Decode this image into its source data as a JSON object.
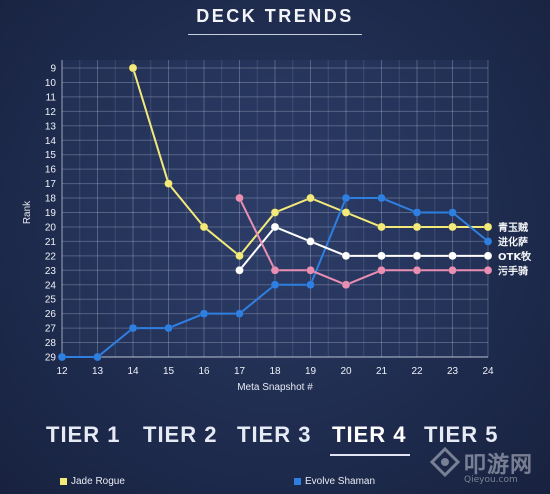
{
  "header": {
    "title": "DECK TRENDS"
  },
  "chart_data": {
    "type": "line",
    "title": "DECK TRENDS",
    "xlabel": "Meta Snapshot #",
    "ylabel": "Rank",
    "x_ticks": [
      12,
      13,
      14,
      15,
      16,
      17,
      18,
      19,
      20,
      21,
      22,
      23,
      24
    ],
    "y_ticks": [
      9,
      10,
      11,
      12,
      13,
      14,
      15,
      16,
      17,
      18,
      19,
      20,
      21,
      22,
      23,
      24,
      25,
      26,
      27,
      28,
      29
    ],
    "xlim": [
      12,
      24
    ],
    "ylim": [
      29,
      9
    ],
    "y_inverted": true,
    "grid": true,
    "series": [
      {
        "name": "青玉贼",
        "color": "#f3ea7a",
        "points": [
          [
            14,
            9
          ],
          [
            15,
            17
          ],
          [
            16,
            20
          ],
          [
            17,
            22
          ],
          [
            18,
            19
          ],
          [
            19,
            18
          ],
          [
            20,
            19
          ],
          [
            21,
            20
          ],
          [
            22,
            20
          ],
          [
            23,
            20
          ],
          [
            24,
            20
          ]
        ]
      },
      {
        "name": "进化萨",
        "color": "#2f7fe0",
        "points": [
          [
            12,
            29
          ],
          [
            13,
            29
          ],
          [
            14,
            27
          ],
          [
            15,
            27
          ],
          [
            16,
            26
          ],
          [
            17,
            26
          ],
          [
            18,
            24
          ],
          [
            19,
            24
          ],
          [
            20,
            18
          ],
          [
            21,
            18
          ],
          [
            22,
            19
          ],
          [
            23,
            19
          ],
          [
            24,
            21
          ]
        ]
      },
      {
        "name": "OTK牧",
        "color": "#ffffff",
        "points": [
          [
            17,
            23
          ],
          [
            18,
            20
          ],
          [
            19,
            21
          ],
          [
            20,
            22
          ],
          [
            21,
            22
          ],
          [
            22,
            22
          ],
          [
            23,
            22
          ],
          [
            24,
            22
          ]
        ]
      },
      {
        "name": "污手骑",
        "color": "#e98fb4",
        "points": [
          [
            17,
            18
          ],
          [
            18,
            23
          ],
          [
            19,
            23
          ],
          [
            20,
            24
          ],
          [
            21,
            23
          ],
          [
            22,
            23
          ],
          [
            23,
            23
          ],
          [
            24,
            23
          ]
        ]
      }
    ]
  },
  "tiers": [
    {
      "label": "TIER 1",
      "active": false
    },
    {
      "label": "TIER 2",
      "active": false
    },
    {
      "label": "TIER 3",
      "active": false
    },
    {
      "label": "TIER 4",
      "active": true
    },
    {
      "label": "TIER 5",
      "active": false
    }
  ],
  "legend": [
    {
      "label": "Jade Rogue",
      "color": "#f3ea7a"
    },
    {
      "label": "Evolve Shaman",
      "color": "#2f7fe0"
    }
  ],
  "watermark": {
    "main": "叩游网",
    "sub": "Qieyou.com"
  }
}
